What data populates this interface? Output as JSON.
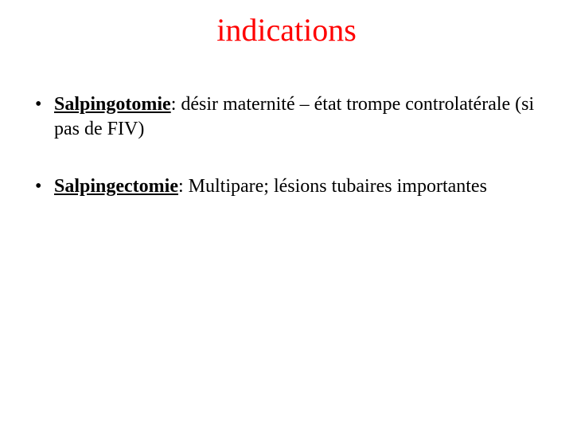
{
  "slide": {
    "title": "indications",
    "title_color": "#ff0000",
    "body_color": "#000000",
    "background_color": "#ffffff",
    "title_fontsize": 40,
    "body_fontsize": 24,
    "font_family": "Comic Sans MS",
    "bullets": [
      {
        "term": "Salpingotomie",
        "rest": ": désir maternité – état trompe controlatérale (si pas de FIV)"
      },
      {
        "term": "Salpingectomie",
        "rest": ": Multipare; lésions tubaires importantes"
      }
    ]
  }
}
